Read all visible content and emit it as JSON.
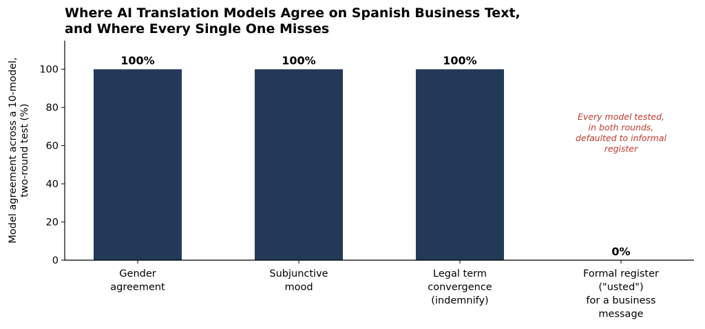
{
  "colors": {
    "bar": "#223a57",
    "annotation": "#c0392b",
    "axis": "#000000"
  },
  "chart_data": {
    "type": "bar",
    "title": "Where AI Translation Models Agree on Spanish Business Text,\nand Where Every Single One Misses",
    "xlabel": "",
    "ylabel": "Model agreement across a 10-model,\ntwo-round test (%)",
    "ylim": [
      0,
      115
    ],
    "yticks": [
      0,
      20,
      40,
      60,
      80,
      100
    ],
    "grid": false,
    "categories": [
      "Gender\nagreement",
      "Subjunctive\nmood",
      "Legal term\nconvergence\n(indemnify)",
      "Formal register\n(\"usted\")\nfor a business\nmessage"
    ],
    "values": [
      100,
      100,
      100,
      0
    ],
    "data_labels": [
      "100%",
      "100%",
      "100%",
      "0%"
    ],
    "annotations": [
      {
        "text": "Every model tested,\nin both rounds,\ndefaulted to informal\nregister",
        "category_index": 3,
        "y": 70
      }
    ]
  }
}
